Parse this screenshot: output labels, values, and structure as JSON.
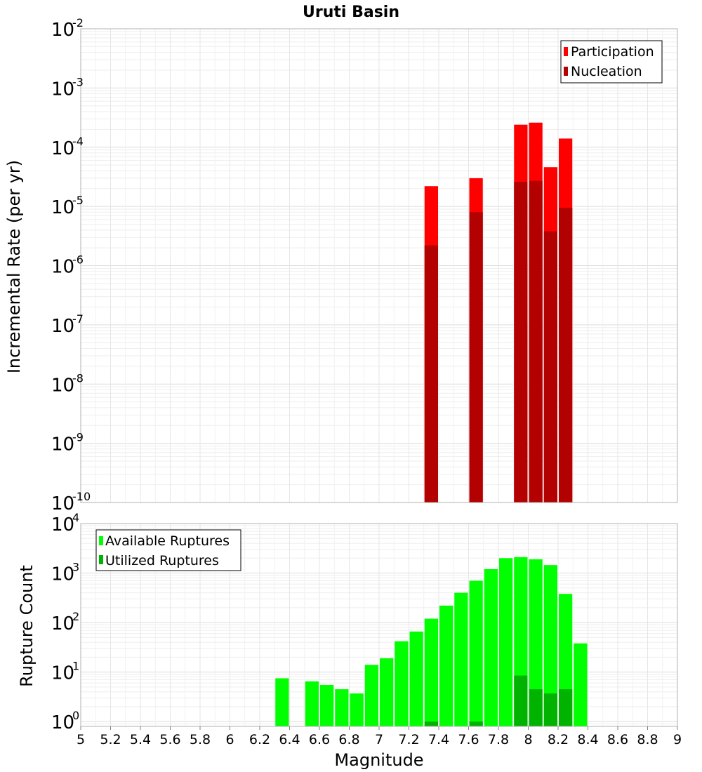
{
  "chart_data": [
    {
      "type": "bar",
      "title": "Uruti Basin",
      "xlabel": "",
      "ylabel": "Incremental Rate (per yr)",
      "yscale": "log",
      "ylim": [
        1e-10,
        0.01
      ],
      "xlim": [
        5,
        9
      ],
      "y_tick_exponents": [
        "-10",
        "-9",
        "-8",
        "-7",
        "-6",
        "-5",
        "-4",
        "-3",
        "-2"
      ],
      "bar_width": 0.1,
      "grid": true,
      "legend_position": "top-right",
      "series": [
        {
          "name": "Participation",
          "color": "#ff0000",
          "x": [
            7.35,
            7.65,
            7.95,
            8.05,
            8.15,
            8.25
          ],
          "values": [
            2.2e-05,
            3e-05,
            0.00024,
            0.00026,
            4.6e-05,
            0.00014
          ]
        },
        {
          "name": "Nucleation",
          "color": "#b30000",
          "x": [
            7.35,
            7.65,
            7.95,
            8.05,
            8.15,
            8.25
          ],
          "values": [
            2.2e-06,
            8e-06,
            2.6e-05,
            2.7e-05,
            3.8e-06,
            9.5e-06
          ]
        }
      ]
    },
    {
      "type": "bar",
      "title": "",
      "xlabel": "Magnitude",
      "ylabel": "Rupture Count",
      "yscale": "log",
      "ylim": [
        0.8,
        10000.0
      ],
      "xlim": [
        5,
        9
      ],
      "y_tick_exponents": [
        "0",
        "1",
        "2",
        "3",
        "4"
      ],
      "x_ticks": [
        "5",
        "5.2",
        "5.4",
        "5.6",
        "5.8",
        "6",
        "6.2",
        "6.4",
        "6.6",
        "6.8",
        "7",
        "7.2",
        "7.4",
        "7.6",
        "7.8",
        "8",
        "8.2",
        "8.4",
        "8.6",
        "8.8",
        "9"
      ],
      "bar_width": 0.1,
      "grid": true,
      "legend_position": "top-left",
      "series": [
        {
          "name": "Available Ruptures",
          "color": "#00ff00",
          "x": [
            6.35,
            6.55,
            6.65,
            6.75,
            6.85,
            6.95,
            7.05,
            7.15,
            7.25,
            7.35,
            7.45,
            7.55,
            7.65,
            7.75,
            7.85,
            7.95,
            8.05,
            8.15,
            8.25,
            8.35
          ],
          "values": [
            7.5,
            6.5,
            5.5,
            4.5,
            3.7,
            14,
            19,
            42,
            66,
            120,
            220,
            400,
            700,
            1200,
            2000,
            2100,
            1900,
            1450,
            380,
            38
          ]
        },
        {
          "name": "Utilized Ruptures",
          "color": "#00b300",
          "x": [
            7.35,
            7.65,
            7.95,
            8.05,
            8.15,
            8.25
          ],
          "values": [
            1,
            1,
            8.5,
            4.5,
            3.7,
            4.5
          ]
        }
      ]
    }
  ]
}
